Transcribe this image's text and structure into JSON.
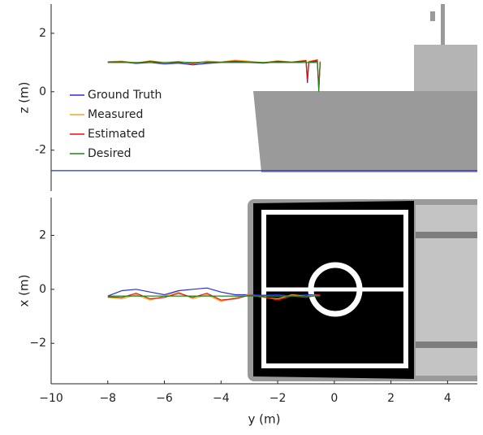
{
  "chart_data": [
    {
      "type": "line",
      "ylabel": "z (m)",
      "xlim": [
        -10,
        5.05
      ],
      "ylim": [
        -3.4,
        3
      ],
      "yticks": [
        2,
        0,
        {
          "value": -2,
          "label": "-2"
        }
      ],
      "hlines": [
        -2.7
      ],
      "hline_color": "#2b2bd6",
      "legend": "left",
      "series": [
        {
          "name": "Ground Truth",
          "color": "#2b2bd6",
          "x": [
            -8,
            -7.5,
            -7,
            -6.5,
            -6,
            -5.5,
            -5,
            -4.5,
            -4,
            -3.5,
            -3,
            -2.5,
            -2,
            -1.5,
            -1,
            -0.95,
            -0.9,
            -0.6,
            -0.55,
            -0.5
          ],
          "values": [
            1,
            1.02,
            0.97,
            1.0,
            0.95,
            0.98,
            0.92,
            0.97,
            1.0,
            1.03,
            1.0,
            0.98,
            1.02,
            1.0,
            1.05,
            0.3,
            1.0,
            1.05,
            0.1,
            1.0
          ]
        },
        {
          "name": "Measured",
          "color": "#f5a623",
          "x": [
            -8,
            -7.5,
            -7,
            -6.5,
            -6,
            -5.5,
            -5,
            -4.5,
            -4,
            -3.5,
            -3,
            -2.5,
            -2,
            -1.5,
            -1,
            -0.95,
            -0.9,
            -0.6,
            -0.55,
            -0.5
          ],
          "values": [
            1.03,
            1.05,
            0.99,
            1.06,
            1.0,
            1.04,
            0.98,
            1.05,
            1.02,
            1.08,
            1.04,
            1.0,
            1.06,
            1.02,
            1.08,
            0.5,
            1.04,
            1.1,
            0.2,
            1.05
          ]
        },
        {
          "name": "Estimated",
          "color": "#e01010",
          "x": [
            -8,
            -7.5,
            -7,
            -6.5,
            -6,
            -5.5,
            -5,
            -4.5,
            -4,
            -3.5,
            -3,
            -2.5,
            -2,
            -1.5,
            -1,
            -0.95,
            -0.9,
            -0.6,
            -0.55,
            -0.5
          ],
          "values": [
            1.02,
            1.03,
            0.98,
            1.04,
            0.99,
            1.02,
            0.96,
            1.02,
            1.01,
            1.05,
            1.02,
            0.99,
            1.04,
            1.01,
            1.06,
            0.4,
            1.02,
            1.08,
            0.15,
            1.02
          ]
        },
        {
          "name": "Desired",
          "color": "#1a8a1a",
          "x": [
            -8,
            -7.5,
            -7,
            -6.5,
            -6,
            -5.5,
            -5,
            -4.5,
            -4,
            -3.5,
            -3,
            -2.5,
            -2,
            -1.5,
            -1,
            -0.95,
            -0.9,
            -0.6,
            -0.55,
            -0.5
          ],
          "values": [
            1,
            1,
            1,
            1,
            1,
            1,
            1,
            1,
            1,
            1,
            1,
            1,
            1,
            1,
            1,
            1,
            1,
            1,
            0,
            1
          ]
        }
      ]
    },
    {
      "type": "line",
      "xlabel": "y (m)",
      "ylabel": "x (m)",
      "xlim": [
        -10,
        5.05
      ],
      "ylim": [
        -3.5,
        3.4
      ],
      "xticks": [
        {
          "value": -10,
          "label": "−10"
        },
        {
          "value": -8,
          "label": "−8"
        },
        {
          "value": -6,
          "label": "−6"
        },
        {
          "value": -4,
          "label": "−4"
        },
        {
          "value": -2,
          "label": "−2"
        },
        0,
        2,
        4
      ],
      "yticks": [
        2,
        0,
        {
          "value": -2,
          "label": "−2"
        }
      ],
      "series": [
        {
          "color": "#2b2bd6",
          "x": [
            -8,
            -7.5,
            -7,
            -6.5,
            -6,
            -5.5,
            -5,
            -4.5,
            -4,
            -3.5,
            -3,
            -2.5,
            -2,
            -1.5,
            -1,
            -0.5
          ],
          "values": [
            -0.25,
            -0.05,
            0.0,
            -0.1,
            -0.2,
            -0.05,
            0.0,
            0.05,
            -0.1,
            -0.2,
            -0.2,
            -0.22,
            -0.2,
            -0.25,
            -0.2,
            -0.2
          ]
        },
        {
          "color": "#f5a623",
          "x": [
            -8,
            -7.5,
            -7,
            -6.5,
            -6,
            -5.5,
            -5,
            -4.5,
            -4,
            -3.5,
            -3,
            -2.5,
            -2,
            -1.5,
            -1,
            -0.5
          ],
          "values": [
            -0.3,
            -0.35,
            -0.2,
            -0.4,
            -0.25,
            -0.1,
            -0.35,
            -0.2,
            -0.45,
            -0.3,
            -0.2,
            -0.3,
            -0.35,
            -0.2,
            -0.25,
            -0.2
          ]
        },
        {
          "color": "#e01010",
          "x": [
            -8,
            -7.5,
            -7,
            -6.5,
            -6,
            -5.5,
            -5,
            -4.5,
            -4,
            -3.5,
            -3,
            -2.5,
            -2,
            -1.5,
            -1,
            -0.5
          ],
          "values": [
            -0.28,
            -0.3,
            -0.15,
            -0.35,
            -0.3,
            -0.15,
            -0.3,
            -0.15,
            -0.4,
            -0.35,
            -0.22,
            -0.28,
            -0.4,
            -0.25,
            -0.3,
            -0.2
          ]
        },
        {
          "color": "#1a8a1a",
          "x": [
            -8,
            -7.5,
            -7,
            -6.5,
            -6,
            -5.5,
            -5,
            -4.5,
            -4,
            -3.5,
            -3,
            -2.5,
            -2,
            -1.5,
            -1,
            -0.5
          ],
          "values": [
            -0.25,
            -0.25,
            -0.25,
            -0.25,
            -0.25,
            -0.25,
            -0.25,
            -0.25,
            -0.25,
            -0.25,
            -0.25,
            -0.25,
            -0.25,
            -0.25,
            -0.25,
            -0.25
          ]
        }
      ]
    }
  ]
}
